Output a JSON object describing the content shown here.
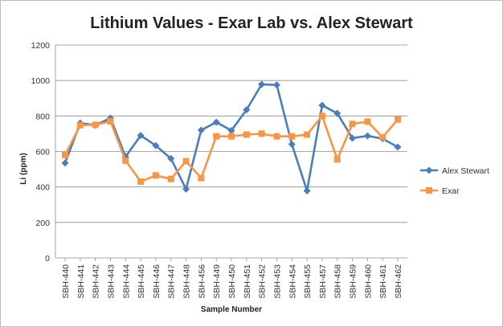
{
  "chart_data": {
    "type": "line",
    "title": "Lithium Values - Exar Lab vs. Alex Stewart",
    "xlabel": "Sample Number",
    "ylabel": "Li (ppm)",
    "ylim": [
      0,
      1200
    ],
    "yticks": [
      0,
      200,
      400,
      600,
      800,
      1000,
      1200
    ],
    "grid": "horizontal",
    "legend_position": "right",
    "categories": [
      "SBH-440",
      "SBH-441",
      "SBH-442",
      "SBH-443",
      "SBH-444",
      "SBH-445",
      "SBH-446",
      "SBH-447",
      "SBH-448",
      "SBH-456",
      "SBH-449",
      "SBH-450",
      "SBH-451",
      "SBH-452",
      "SBH-453",
      "SBH-454",
      "SBH-455",
      "SBH-457",
      "SBH-458",
      "SBH-459",
      "SBH-460",
      "SBH-461",
      "SBH-462"
    ],
    "series": [
      {
        "name": "Alex Stewart",
        "color": "#4a7ebb",
        "marker": "diamond",
        "values": [
          535,
          760,
          748,
          788,
          570,
          690,
          633,
          560,
          388,
          720,
          765,
          718,
          835,
          978,
          975,
          640,
          378,
          860,
          815,
          675,
          688,
          672,
          625
        ]
      },
      {
        "name": "Exar",
        "color": "#f79646",
        "marker": "square",
        "values": [
          580,
          748,
          750,
          770,
          548,
          430,
          465,
          445,
          545,
          450,
          685,
          685,
          695,
          700,
          685,
          685,
          695,
          800,
          555,
          755,
          768,
          680,
          780
        ]
      }
    ]
  }
}
